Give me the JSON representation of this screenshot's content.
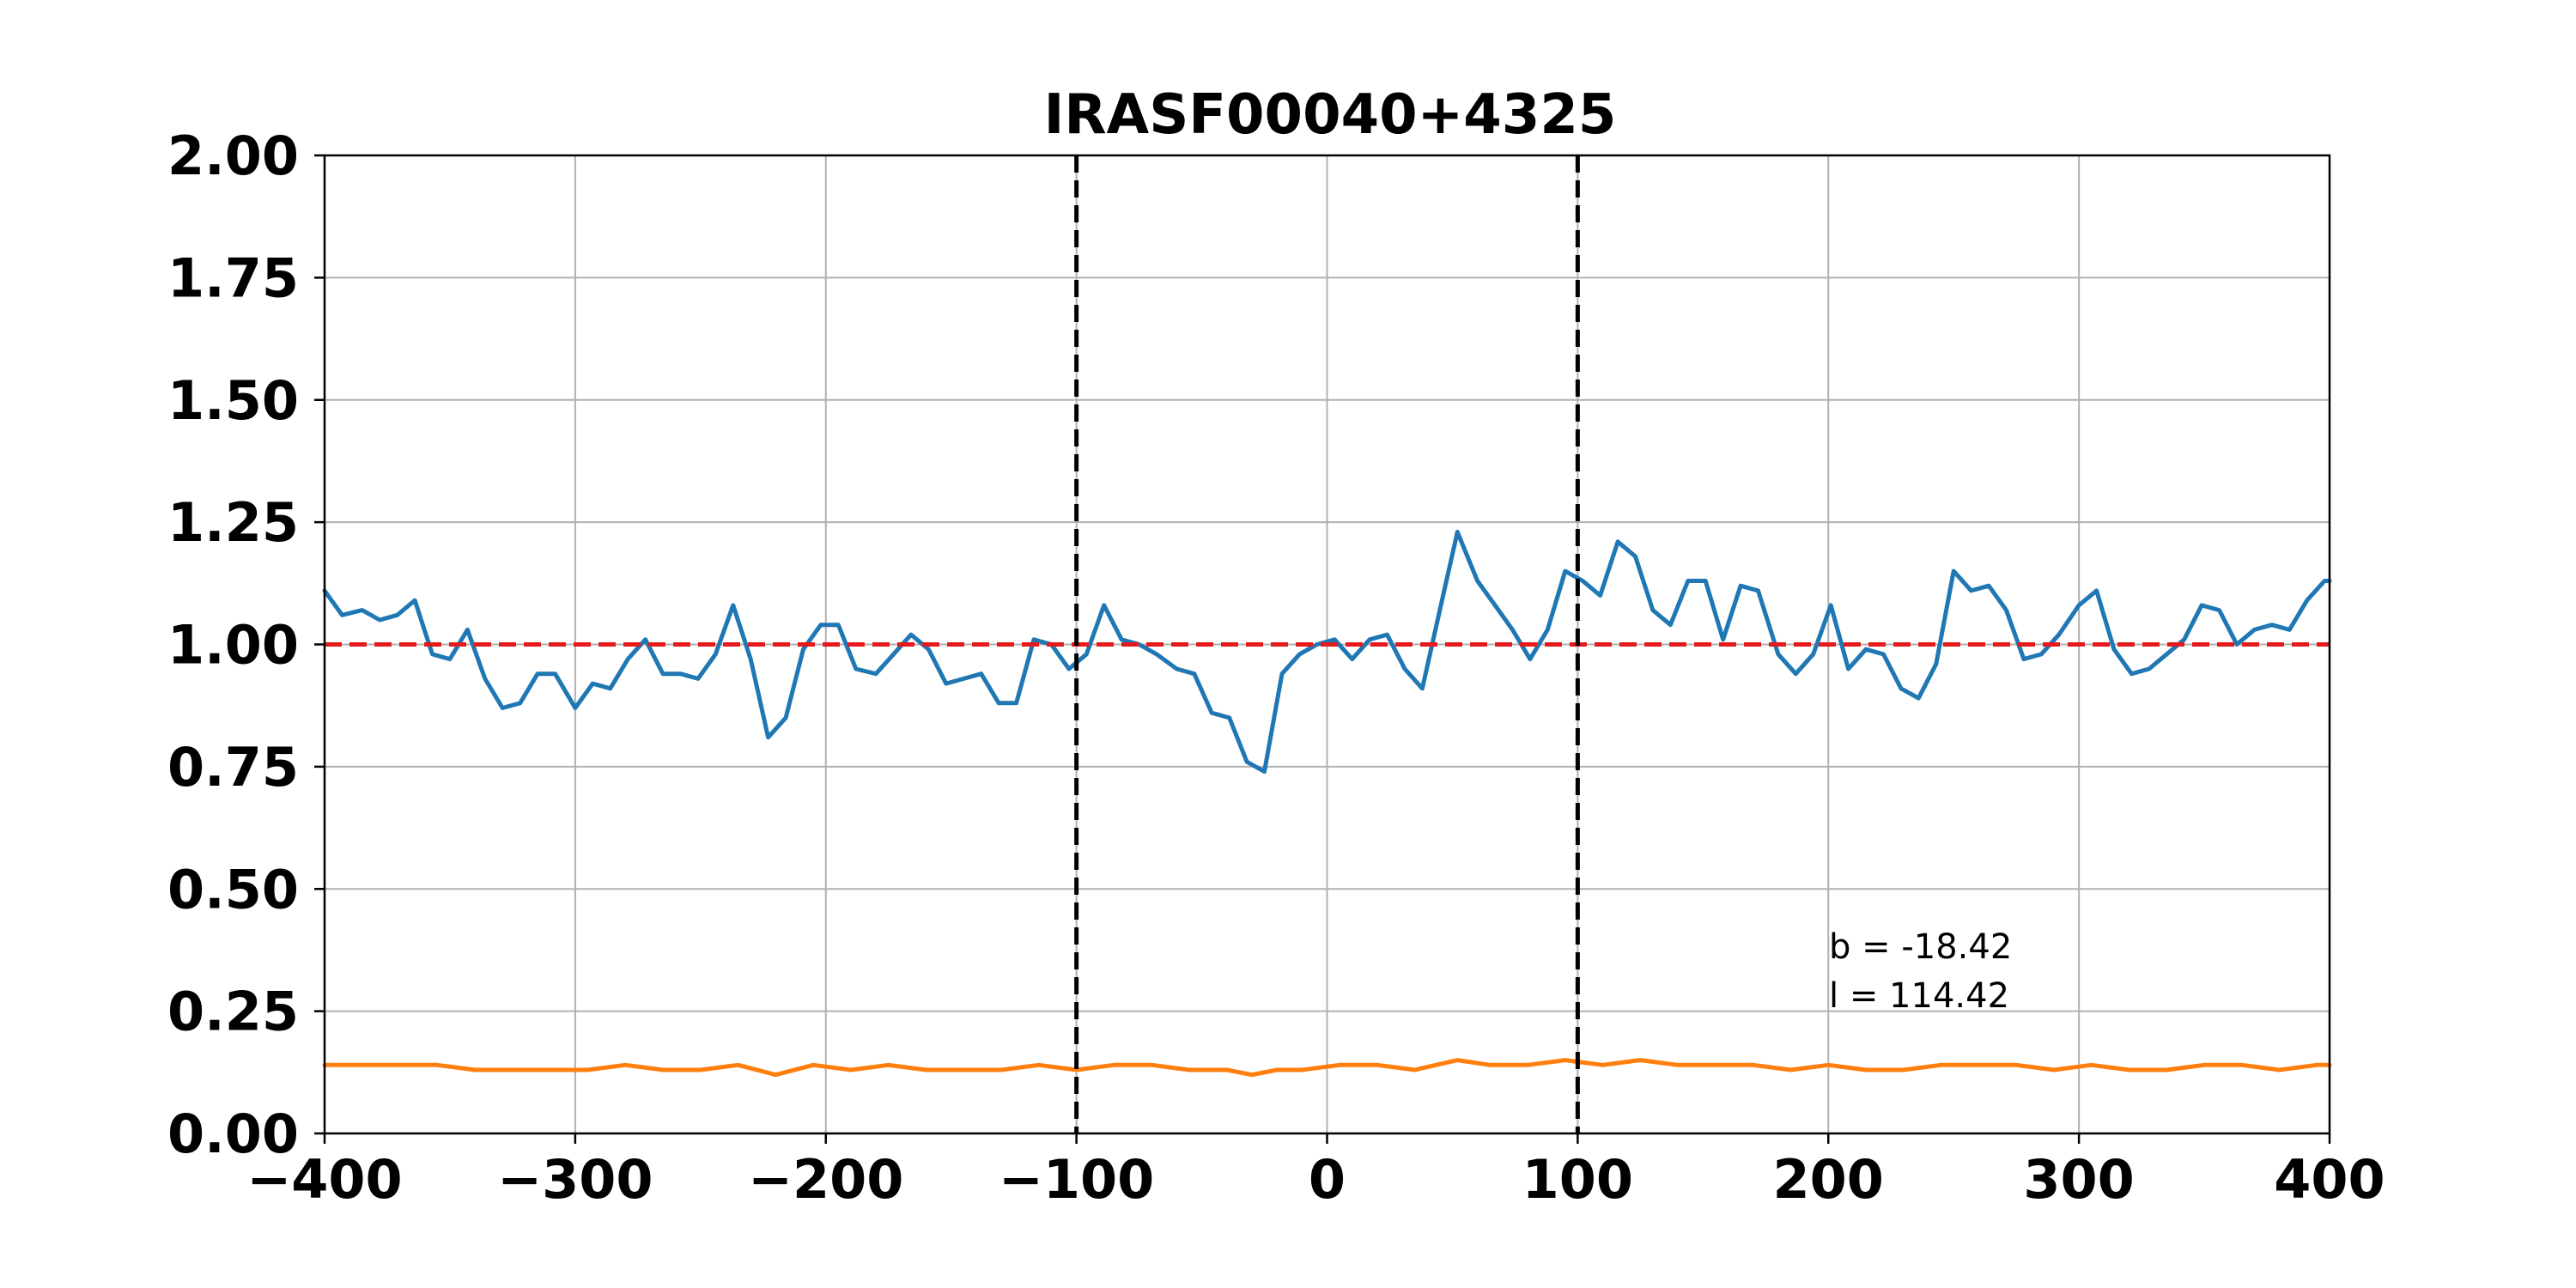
{
  "chart_data": {
    "type": "line",
    "title": "IRASF00040+4325",
    "xlabel": "",
    "ylabel": "",
    "xlim": [
      -400,
      400
    ],
    "ylim": [
      0,
      2
    ],
    "xticks": [
      "−400",
      "−300",
      "−200",
      "−100",
      "0",
      "100",
      "200",
      "300",
      "400"
    ],
    "xtick_values": [
      -400,
      -300,
      -200,
      -100,
      0,
      100,
      200,
      300,
      400
    ],
    "yticks": [
      "0.00",
      "0.25",
      "0.50",
      "0.75",
      "1.00",
      "1.25",
      "1.50",
      "1.75",
      "2.00"
    ],
    "ytick_values": [
      0,
      0.25,
      0.5,
      0.75,
      1.0,
      1.25,
      1.5,
      1.75,
      2.0
    ],
    "grid": true,
    "colors": {
      "blue": "#1f77b4",
      "orange": "#ff7f0e",
      "red": "#e41a1c",
      "black": "#000000",
      "grid": "#b0b0b0"
    },
    "reference_lines": {
      "horizontal": [
        {
          "y": 1.0,
          "style": "dashed",
          "color": "red"
        }
      ],
      "vertical": [
        {
          "x": -100,
          "style": "dashed",
          "color": "black"
        },
        {
          "x": 100,
          "style": "dashed",
          "color": "black"
        }
      ]
    },
    "annotations": [
      "b = -18.42",
      "l = 114.42"
    ],
    "series": [
      {
        "color": "blue",
        "x": [
          -400,
          -393,
          -385,
          -378,
          -371,
          -364,
          -357,
          -350,
          -343,
          -336,
          -329,
          -322,
          -315,
          -308,
          -300,
          -293,
          -286,
          -279,
          -272,
          -265,
          -258,
          -251,
          -244,
          -237,
          -230,
          -223,
          -216,
          -209,
          -202,
          -195,
          -188,
          -180,
          -173,
          -166,
          -159,
          -152,
          -145,
          -138,
          -131,
          -124,
          -117,
          -110,
          -103,
          -96,
          -89,
          -82,
          -75,
          -68,
          -60,
          -53,
          -46,
          -39,
          -32,
          -25,
          -18,
          -11,
          -4,
          3,
          10,
          17,
          24,
          31,
          38,
          45,
          52,
          60,
          67,
          74,
          81,
          88,
          95,
          102,
          109,
          116,
          123,
          130,
          137,
          144,
          151,
          158,
          165,
          172,
          180,
          187,
          194,
          201,
          208,
          215,
          222,
          229,
          236,
          243,
          250,
          257,
          264,
          271,
          278,
          285,
          292,
          300,
          307,
          314,
          321,
          328,
          335,
          342,
          349,
          356,
          363,
          370,
          377,
          384,
          391,
          398,
          400
        ],
        "values": [
          1.11,
          1.06,
          1.07,
          1.05,
          1.06,
          1.09,
          0.98,
          0.97,
          1.03,
          0.93,
          0.87,
          0.88,
          0.94,
          0.94,
          0.87,
          0.92,
          0.91,
          0.97,
          1.01,
          0.94,
          0.94,
          0.93,
          0.98,
          1.08,
          0.97,
          0.81,
          0.85,
          0.99,
          1.04,
          1.04,
          0.95,
          0.94,
          0.98,
          1.02,
          0.99,
          0.92,
          0.93,
          0.94,
          0.88,
          0.88,
          1.01,
          1.0,
          0.95,
          0.98,
          1.08,
          1.01,
          1.0,
          0.98,
          0.95,
          0.94,
          0.86,
          0.85,
          0.76,
          0.74,
          0.94,
          0.98,
          1.0,
          1.01,
          0.97,
          1.01,
          1.02,
          0.95,
          0.91,
          1.07,
          1.23,
          1.13,
          1.08,
          1.03,
          0.97,
          1.03,
          1.15,
          1.13,
          1.1,
          1.21,
          1.18,
          1.07,
          1.04,
          1.13,
          1.13,
          1.01,
          1.12,
          1.11,
          0.98,
          0.94,
          0.98,
          1.08,
          0.95,
          0.99,
          0.98,
          0.91,
          0.89,
          0.96,
          1.15,
          1.11,
          1.12,
          1.07,
          0.97,
          0.98,
          1.02,
          1.08,
          1.11,
          0.99,
          0.94,
          0.95,
          0.98,
          1.01,
          1.08,
          1.07,
          1.0,
          1.03,
          1.04,
          1.03,
          1.09,
          1.13,
          1.13
        ]
      },
      {
        "color": "orange",
        "x": [
          -400,
          -385,
          -370,
          -355,
          -340,
          -325,
          -310,
          -295,
          -280,
          -265,
          -250,
          -235,
          -220,
          -205,
          -190,
          -175,
          -160,
          -145,
          -130,
          -115,
          -100,
          -85,
          -70,
          -55,
          -40,
          -30,
          -20,
          -10,
          5,
          20,
          35,
          52,
          65,
          80,
          95,
          110,
          125,
          140,
          155,
          170,
          185,
          200,
          215,
          230,
          245,
          260,
          275,
          290,
          305,
          320,
          335,
          350,
          365,
          380,
          395,
          400
        ],
        "values": [
          0.14,
          0.14,
          0.14,
          0.14,
          0.13,
          0.13,
          0.13,
          0.13,
          0.14,
          0.13,
          0.13,
          0.14,
          0.12,
          0.14,
          0.13,
          0.14,
          0.13,
          0.13,
          0.13,
          0.14,
          0.13,
          0.14,
          0.14,
          0.13,
          0.13,
          0.12,
          0.13,
          0.13,
          0.14,
          0.14,
          0.13,
          0.15,
          0.14,
          0.14,
          0.15,
          0.14,
          0.15,
          0.14,
          0.14,
          0.14,
          0.13,
          0.14,
          0.13,
          0.13,
          0.14,
          0.14,
          0.14,
          0.13,
          0.14,
          0.13,
          0.13,
          0.14,
          0.14,
          0.13,
          0.14,
          0.14
        ]
      }
    ]
  }
}
